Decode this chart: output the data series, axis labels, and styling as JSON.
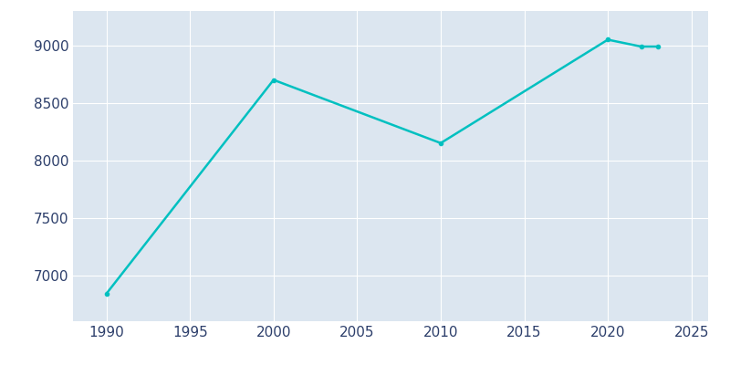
{
  "years": [
    1990,
    2000,
    2010,
    2020,
    2022,
    2023
  ],
  "population": [
    6840,
    8700,
    8150,
    9050,
    8990,
    8990
  ],
  "line_color": "#00C0C0",
  "marker": "o",
  "marker_size": 3,
  "line_width": 1.8,
  "fig_bg_color": "#ffffff",
  "plot_bg_color": "#dce6f0",
  "grid_color": "#ffffff",
  "xlim": [
    1988,
    2026
  ],
  "ylim": [
    6600,
    9300
  ],
  "xticks": [
    1990,
    1995,
    2000,
    2005,
    2010,
    2015,
    2020,
    2025
  ],
  "yticks": [
    7000,
    7500,
    8000,
    8500,
    9000
  ],
  "tick_color": "#2d3f6b",
  "tick_labelsize": 11
}
